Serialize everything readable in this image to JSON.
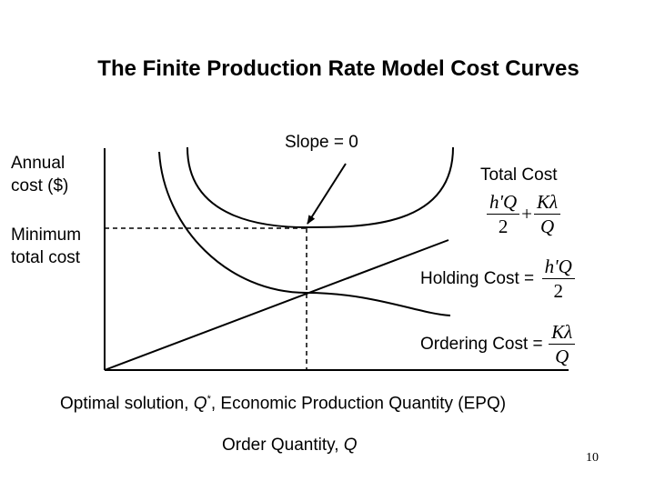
{
  "title": "The Finite Production Rate Model Cost Curves",
  "y_axis_label": [
    "Annual",
    "cost ($)"
  ],
  "minimum_label": [
    "Minimum",
    "total cost"
  ],
  "slope_label": "Slope = 0",
  "total_cost": {
    "label": "Total Cost",
    "term1_num": "h'Q",
    "term1_den": "2",
    "plus": "+",
    "term2_num": "Kλ",
    "term2_den": "Q"
  },
  "holding_cost": {
    "label": "Holding Cost =",
    "num": "h'Q",
    "den": "2"
  },
  "ordering_cost": {
    "label": "Ordering Cost =",
    "num": "Kλ",
    "den": "Q"
  },
  "optimal": {
    "prefix": "Optimal solution, ",
    "q": "Q",
    "star": "*",
    "suffix": ", Economic Production Quantity (EPQ)"
  },
  "x_axis": {
    "label": "Order Quantity, ",
    "q": "Q"
  },
  "page_number": "10"
}
